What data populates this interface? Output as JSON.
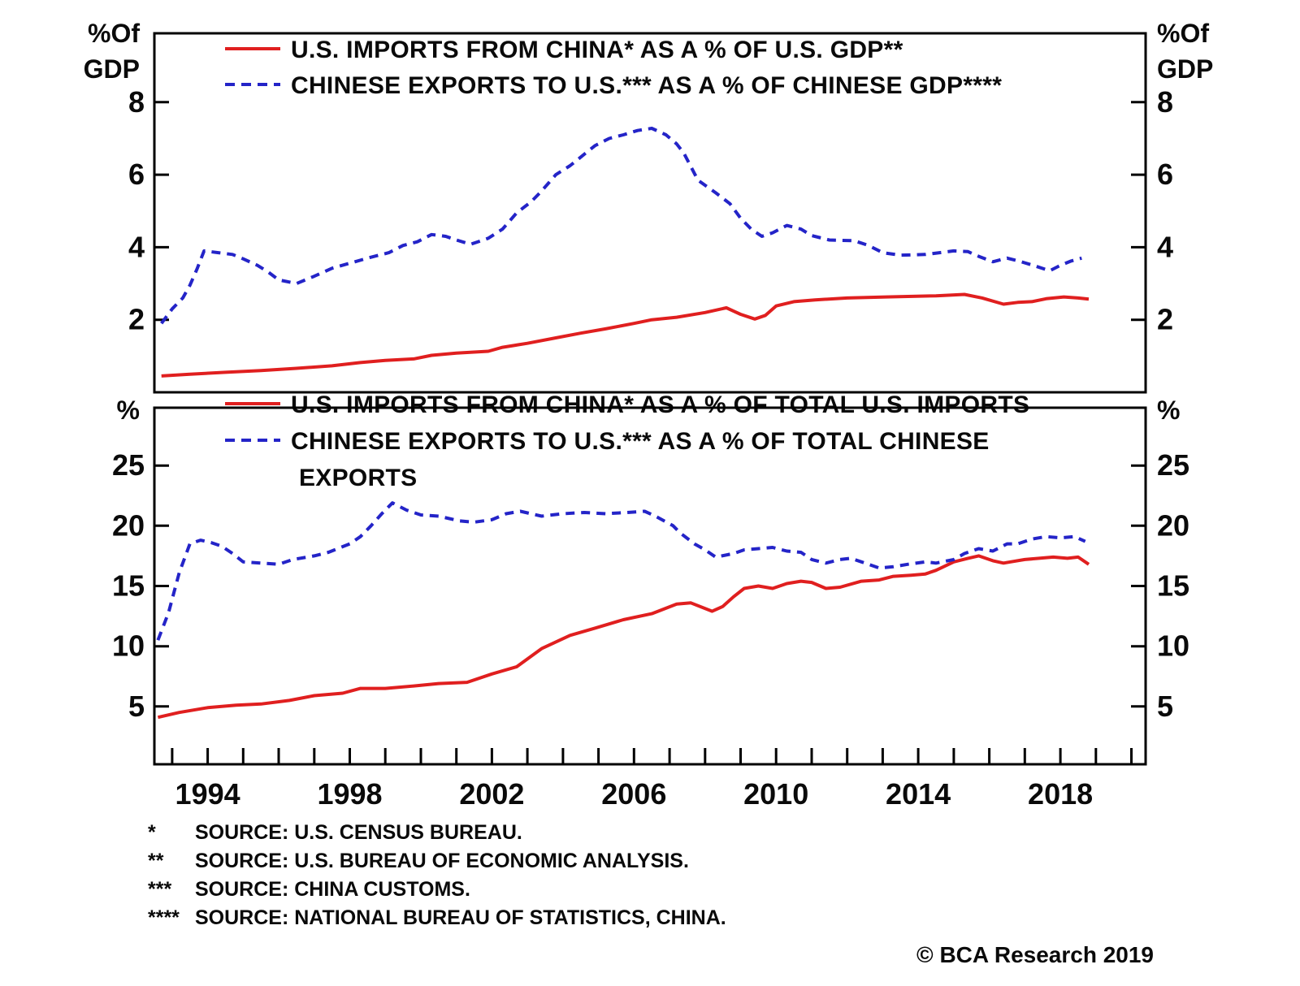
{
  "page": {
    "background": "#ffffff"
  },
  "colors": {
    "red_series": "#e01f1f",
    "blue_series": "#2424c8",
    "axis": "#000000",
    "text": "#0a0a0a"
  },
  "axis_units": {
    "top_left_line1": "%Of",
    "top_left_line2": "GDP",
    "top_right_line1": "%Of",
    "top_right_line2": "GDP",
    "bottom_left": "%",
    "bottom_right": "%"
  },
  "chart_data": [
    {
      "type": "line",
      "panel": "top",
      "title": "",
      "xlabel": "",
      "ylabel": "%Of GDP",
      "grid": false,
      "legend_position": "top-left-inside",
      "xlim": [
        1992.5,
        2020.4
      ],
      "ylim": [
        0,
        9.9
      ],
      "yticks": [
        2,
        4,
        6,
        8
      ],
      "xticks_minor": [
        1993,
        2020
      ],
      "xtick_labels": [],
      "series": [
        {
          "id": "us-imports-pct-us-gdp",
          "name": "U.S. IMPORTS FROM CHINA* AS A % OF U.S. GDP**",
          "color": "#e01f1f",
          "dash": "solid",
          "points": [
            [
              1992.7,
              0.45
            ],
            [
              1993.5,
              0.5
            ],
            [
              1994.5,
              0.55
            ],
            [
              1995.5,
              0.6
            ],
            [
              1996.5,
              0.66
            ],
            [
              1997.5,
              0.73
            ],
            [
              1998.3,
              0.82
            ],
            [
              1999,
              0.88
            ],
            [
              1999.8,
              0.92
            ],
            [
              2000.3,
              1.02
            ],
            [
              2001,
              1.08
            ],
            [
              2001.9,
              1.13
            ],
            [
              2002.3,
              1.24
            ],
            [
              2003,
              1.35
            ],
            [
              2003.8,
              1.5
            ],
            [
              2004.5,
              1.63
            ],
            [
              2005.2,
              1.75
            ],
            [
              2006,
              1.9
            ],
            [
              2006.5,
              2.0
            ],
            [
              2007.2,
              2.07
            ],
            [
              2008,
              2.2
            ],
            [
              2008.6,
              2.33
            ],
            [
              2009,
              2.15
            ],
            [
              2009.4,
              2.02
            ],
            [
              2009.7,
              2.12
            ],
            [
              2010,
              2.38
            ],
            [
              2010.5,
              2.5
            ],
            [
              2011.1,
              2.55
            ],
            [
              2012,
              2.6
            ],
            [
              2013.1,
              2.63
            ],
            [
              2014.5,
              2.66
            ],
            [
              2015.3,
              2.7
            ],
            [
              2015.8,
              2.6
            ],
            [
              2016.4,
              2.43
            ],
            [
              2016.8,
              2.48
            ],
            [
              2017.2,
              2.5
            ],
            [
              2017.6,
              2.58
            ],
            [
              2018.1,
              2.63
            ],
            [
              2018.5,
              2.6
            ],
            [
              2018.8,
              2.57
            ]
          ]
        },
        {
          "id": "chinese-exports-pct-chinese-gdp",
          "name": "CHINESE EXPORTS TO U.S.*** AS A % OF CHINESE GDP****",
          "color": "#2424c8",
          "dash": "dashed",
          "points": [
            [
              1992.7,
              1.9
            ],
            [
              1993,
              2.3
            ],
            [
              1993.3,
              2.6
            ],
            [
              1993.5,
              2.95
            ],
            [
              1993.7,
              3.4
            ],
            [
              1993.9,
              3.9
            ],
            [
              1994.3,
              3.85
            ],
            [
              1994.7,
              3.8
            ],
            [
              1995,
              3.68
            ],
            [
              1995.4,
              3.5
            ],
            [
              1995.7,
              3.32
            ],
            [
              1996,
              3.1
            ],
            [
              1996.5,
              3.0
            ],
            [
              1997,
              3.2
            ],
            [
              1997.5,
              3.42
            ],
            [
              1998,
              3.56
            ],
            [
              1998.5,
              3.7
            ],
            [
              1999.1,
              3.85
            ],
            [
              1999.5,
              4.05
            ],
            [
              1999.9,
              4.15
            ],
            [
              2000.3,
              4.35
            ],
            [
              2000.7,
              4.3
            ],
            [
              2001,
              4.2
            ],
            [
              2001.4,
              4.08
            ],
            [
              2001.9,
              4.25
            ],
            [
              2002.3,
              4.5
            ],
            [
              2002.7,
              4.95
            ],
            [
              2003.1,
              5.25
            ],
            [
              2003.4,
              5.55
            ],
            [
              2003.8,
              6.0
            ],
            [
              2004.2,
              6.25
            ],
            [
              2004.9,
              6.8
            ],
            [
              2005.3,
              7.0
            ],
            [
              2005.7,
              7.1
            ],
            [
              2006.1,
              7.22
            ],
            [
              2006.5,
              7.28
            ],
            [
              2006.9,
              7.1
            ],
            [
              2007.2,
              6.85
            ],
            [
              2007.4,
              6.6
            ],
            [
              2007.8,
              5.85
            ],
            [
              2008.3,
              5.5
            ],
            [
              2008.7,
              5.2
            ],
            [
              2009,
              4.8
            ],
            [
              2009.3,
              4.5
            ],
            [
              2009.6,
              4.3
            ],
            [
              2009.9,
              4.4
            ],
            [
              2010.3,
              4.6
            ],
            [
              2010.7,
              4.5
            ],
            [
              2011,
              4.32
            ],
            [
              2011.5,
              4.2
            ],
            [
              2012.2,
              4.18
            ],
            [
              2012.6,
              4.05
            ],
            [
              2013,
              3.85
            ],
            [
              2013.5,
              3.78
            ],
            [
              2014.2,
              3.8
            ],
            [
              2014.6,
              3.85
            ],
            [
              2015,
              3.9
            ],
            [
              2015.4,
              3.88
            ],
            [
              2015.7,
              3.75
            ],
            [
              2016.1,
              3.6
            ],
            [
              2016.5,
              3.7
            ],
            [
              2016.9,
              3.6
            ],
            [
              2017.3,
              3.48
            ],
            [
              2017.7,
              3.35
            ],
            [
              2018,
              3.5
            ],
            [
              2018.3,
              3.62
            ],
            [
              2018.6,
              3.7
            ]
          ]
        }
      ]
    },
    {
      "type": "line",
      "panel": "bottom",
      "title": "",
      "xlabel": "",
      "ylabel": "%",
      "grid": false,
      "legend_position": "top-left-inside",
      "xlim": [
        1992.5,
        2020.4
      ],
      "ylim": [
        0.2,
        29.8
      ],
      "yticks": [
        5,
        10,
        15,
        20,
        25
      ],
      "xticks_minor": [
        1993,
        2020
      ],
      "xtick_labels": [
        1994,
        1998,
        2002,
        2006,
        2010,
        2014,
        2018
      ],
      "legend_wrap": [
        "CHINESE EXPORTS TO U.S.*** AS A % OF TOTAL CHINESE",
        "EXPORTS"
      ],
      "series": [
        {
          "id": "us-imports-pct-total-us-imports",
          "name": "U.S. IMPORTS FROM CHINA* AS A % OF TOTAL U.S. IMPORTS",
          "color": "#e01f1f",
          "dash": "solid",
          "points": [
            [
              1992.6,
              4.1
            ],
            [
              1993.2,
              4.5
            ],
            [
              1994,
              4.9
            ],
            [
              1994.8,
              5.1
            ],
            [
              1995.5,
              5.2
            ],
            [
              1996.3,
              5.5
            ],
            [
              1997,
              5.9
            ],
            [
              1997.8,
              6.1
            ],
            [
              1998.3,
              6.5
            ],
            [
              1999,
              6.5
            ],
            [
              1999.8,
              6.7
            ],
            [
              2000.5,
              6.9
            ],
            [
              2001.3,
              7.0
            ],
            [
              2002,
              7.7
            ],
            [
              2002.7,
              8.3
            ],
            [
              2003.4,
              9.8
            ],
            [
              2004.2,
              10.9
            ],
            [
              2004.9,
              11.5
            ],
            [
              2005.7,
              12.2
            ],
            [
              2006.5,
              12.7
            ],
            [
              2007.2,
              13.5
            ],
            [
              2007.6,
              13.6
            ],
            [
              2008.2,
              12.9
            ],
            [
              2008.5,
              13.3
            ],
            [
              2008.8,
              14.1
            ],
            [
              2009.1,
              14.8
            ],
            [
              2009.5,
              15.0
            ],
            [
              2009.9,
              14.8
            ],
            [
              2010.3,
              15.2
            ],
            [
              2010.7,
              15.4
            ],
            [
              2011,
              15.3
            ],
            [
              2011.4,
              14.8
            ],
            [
              2011.8,
              14.9
            ],
            [
              2012.4,
              15.4
            ],
            [
              2012.9,
              15.5
            ],
            [
              2013.3,
              15.8
            ],
            [
              2013.8,
              15.9
            ],
            [
              2014.2,
              16.0
            ],
            [
              2014.5,
              16.3
            ],
            [
              2015,
              17.0
            ],
            [
              2015.4,
              17.3
            ],
            [
              2015.7,
              17.5
            ],
            [
              2016.1,
              17.1
            ],
            [
              2016.4,
              16.9
            ],
            [
              2016.6,
              17.0
            ],
            [
              2017,
              17.2
            ],
            [
              2017.4,
              17.3
            ],
            [
              2017.8,
              17.4
            ],
            [
              2018.2,
              17.3
            ],
            [
              2018.5,
              17.4
            ],
            [
              2018.8,
              16.8
            ]
          ]
        },
        {
          "id": "chinese-exports-pct-total-chinese-exports",
          "name": "CHINESE EXPORTS TO U.S.*** AS A % OF TOTAL CHINESE EXPORTS",
          "color": "#2424c8",
          "dash": "dashed",
          "points": [
            [
              1992.6,
              10.5
            ],
            [
              1992.9,
              12.8
            ],
            [
              1993.2,
              16.1
            ],
            [
              1993.5,
              18.5
            ],
            [
              1993.8,
              18.8
            ],
            [
              1994.1,
              18.6
            ],
            [
              1994.4,
              18.3
            ],
            [
              1994.7,
              17.7
            ],
            [
              1995,
              17.0
            ],
            [
              1995.5,
              16.9
            ],
            [
              1996,
              16.8
            ],
            [
              1996.4,
              17.2
            ],
            [
              1997,
              17.5
            ],
            [
              1997.4,
              17.8
            ],
            [
              1998,
              18.5
            ],
            [
              1998.3,
              19.1
            ],
            [
              1998.6,
              20.0
            ],
            [
              1998.9,
              21.0
            ],
            [
              1999.2,
              21.9
            ],
            [
              1999.6,
              21.3
            ],
            [
              2000,
              20.9
            ],
            [
              2000.5,
              20.8
            ],
            [
              2001.1,
              20.4
            ],
            [
              2001.5,
              20.3
            ],
            [
              2002,
              20.5
            ],
            [
              2002.4,
              21.0
            ],
            [
              2002.8,
              21.2
            ],
            [
              2003.4,
              20.8
            ],
            [
              2004,
              21.0
            ],
            [
              2004.6,
              21.1
            ],
            [
              2005.2,
              21.0
            ],
            [
              2005.8,
              21.1
            ],
            [
              2006.3,
              21.2
            ],
            [
              2006.6,
              20.8
            ],
            [
              2007.1,
              20.0
            ],
            [
              2007.3,
              19.4
            ],
            [
              2007.7,
              18.5
            ],
            [
              2008,
              18.0
            ],
            [
              2008.3,
              17.4
            ],
            [
              2008.8,
              17.7
            ],
            [
              2009.1,
              18.0
            ],
            [
              2009.5,
              18.1
            ],
            [
              2009.9,
              18.2
            ],
            [
              2010.3,
              17.9
            ],
            [
              2010.7,
              17.8
            ],
            [
              2011,
              17.2
            ],
            [
              2011.4,
              16.9
            ],
            [
              2011.8,
              17.2
            ],
            [
              2012.1,
              17.3
            ],
            [
              2012.4,
              17.0
            ],
            [
              2012.9,
              16.5
            ],
            [
              2013.3,
              16.6
            ],
            [
              2013.7,
              16.8
            ],
            [
              2014.2,
              17.0
            ],
            [
              2014.5,
              16.9
            ],
            [
              2015,
              17.2
            ],
            [
              2015.3,
              17.7
            ],
            [
              2015.7,
              18.1
            ],
            [
              2016.1,
              17.9
            ],
            [
              2016.5,
              18.5
            ],
            [
              2016.8,
              18.5
            ],
            [
              2017.2,
              18.9
            ],
            [
              2017.6,
              19.1
            ],
            [
              2018,
              19.0
            ],
            [
              2018.4,
              19.1
            ],
            [
              2018.7,
              18.7
            ]
          ]
        }
      ]
    }
  ],
  "footnotes": [
    {
      "marker": "*",
      "text": "SOURCE: U.S. CENSUS BUREAU."
    },
    {
      "marker": "**",
      "text": "SOURCE: U.S. BUREAU OF ECONOMIC ANALYSIS."
    },
    {
      "marker": "***",
      "text": "SOURCE: CHINA CUSTOMS."
    },
    {
      "marker": "****",
      "text": "SOURCE: NATIONAL BUREAU OF STATISTICS, CHINA."
    }
  ],
  "copyright": "© BCA Research 2019"
}
